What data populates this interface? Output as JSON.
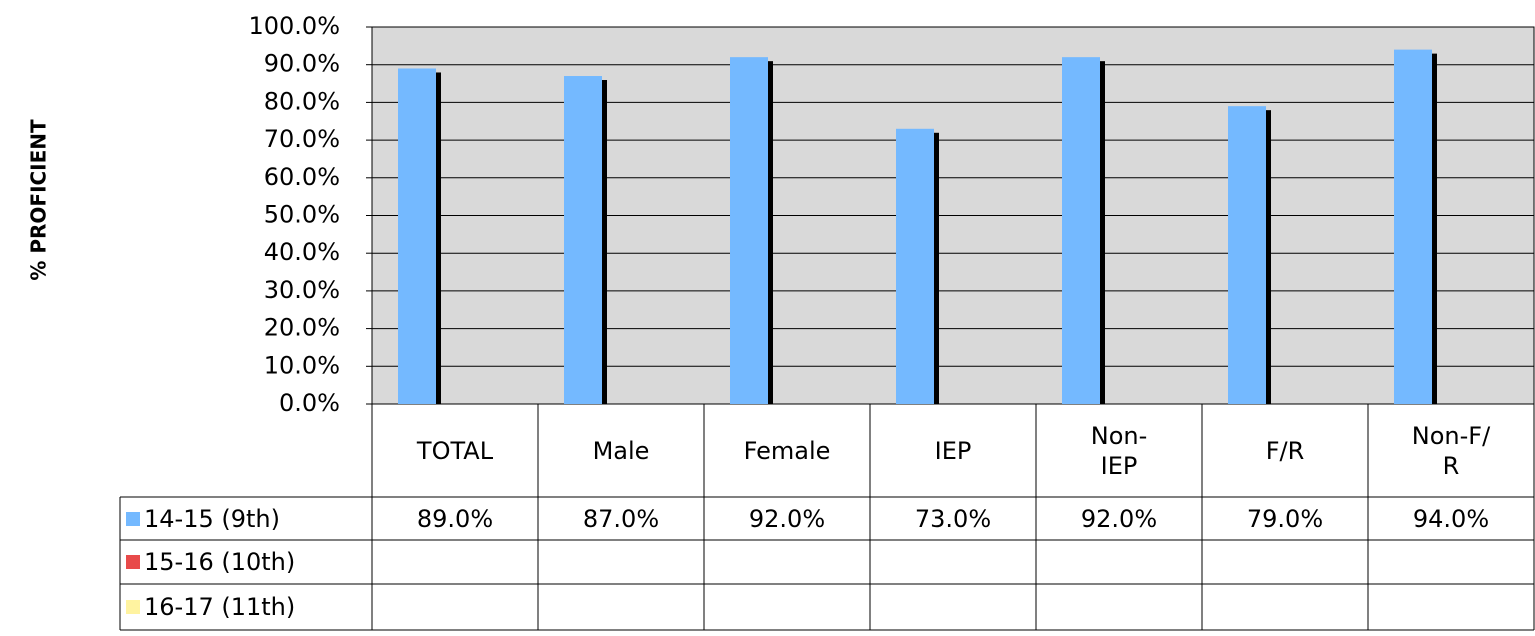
{
  "chart_data": {
    "type": "bar",
    "y_label": "% PROFICIENT",
    "categories": [
      "TOTAL",
      "Male",
      "Female",
      "IEP",
      "Non-\nIEP",
      "F/R",
      "Non-F/\nR"
    ],
    "series": [
      {
        "name": "14-15 (9th)",
        "color": "#74b9ff",
        "values": [
          89,
          87,
          92,
          73,
          92,
          79,
          94
        ],
        "value_labels": [
          "89.0%",
          "87.0%",
          "92.0%",
          "73.0%",
          "92.0%",
          "79.0%",
          "94.0%"
        ]
      },
      {
        "name": "15-16 (10th)",
        "color": "#e84a4a",
        "values": [
          null,
          null,
          null,
          null,
          null,
          null,
          null
        ]
      },
      {
        "name": "16-17 (11th)",
        "color": "#fff3a0",
        "values": [
          null,
          null,
          null,
          null,
          null,
          null,
          null
        ]
      }
    ],
    "ylim": [
      0,
      100
    ],
    "yticks": [
      {
        "value": 0,
        "label": "0.0%"
      },
      {
        "value": 10,
        "label": "10.0%"
      },
      {
        "value": 20,
        "label": "20.0%"
      },
      {
        "value": 30,
        "label": "30.0%"
      },
      {
        "value": 40,
        "label": "40.0%"
      },
      {
        "value": 50,
        "label": "50.0%"
      },
      {
        "value": 60,
        "label": "60.0%"
      },
      {
        "value": 70,
        "label": "70.0%"
      },
      {
        "value": 80,
        "label": "80.0%"
      },
      {
        "value": 90,
        "label": "90.0%"
      },
      {
        "value": 100,
        "label": "100.0%"
      }
    ],
    "grid": true
  }
}
